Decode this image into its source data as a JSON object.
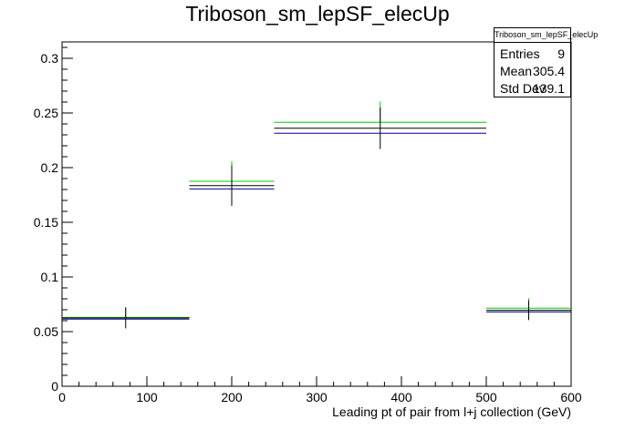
{
  "chart_data": {
    "type": "histogram",
    "title": "Triboson_sm_lepSF_elecUp",
    "xlabel": "Leading pt of pair from l+j collection (GeV)",
    "ylabel": "",
    "xlim": [
      0,
      600
    ],
    "ylim": [
      0,
      0.315
    ],
    "x_ticks": [
      0,
      100,
      200,
      300,
      400,
      500,
      600
    ],
    "y_ticks": [
      0,
      0.05,
      0.1,
      0.15,
      0.2,
      0.25,
      0.3
    ],
    "x_tick_labels": [
      "0",
      "100",
      "200",
      "300",
      "400",
      "500",
      "600"
    ],
    "y_tick_labels": [
      "0",
      "0.05",
      "0.1",
      "0.15",
      "0.2",
      "0.25",
      "0.3"
    ],
    "bins": [
      {
        "x_low": 0,
        "x_high": 150,
        "center": 75,
        "nominal": 0.0625,
        "up": 0.063,
        "down": 0.0615,
        "error": 0.0095
      },
      {
        "x_low": 150,
        "x_high": 250,
        "center": 200,
        "nominal": 0.1835,
        "up": 0.1875,
        "down": 0.1805,
        "error": 0.0185
      },
      {
        "x_low": 250,
        "x_high": 500,
        "center": 375,
        "nominal": 0.236,
        "up": 0.2415,
        "down": 0.2315,
        "error": 0.019
      },
      {
        "x_low": 500,
        "x_high": 600,
        "center": 550,
        "nominal": 0.0695,
        "up": 0.0715,
        "down": 0.068,
        "error": 0.009
      }
    ],
    "series_colors": {
      "nominal": "#000000",
      "up": "#00cc00",
      "down": "#000099"
    },
    "grid": false
  },
  "stats": {
    "name": "Triboson_sm_lepSF_elecUp",
    "entries_label": "Entries",
    "entries_value": "9",
    "mean_label": "Mean",
    "mean_value": "305.4",
    "stddev_label": "Std Dev",
    "stddev_value": "139.1"
  }
}
